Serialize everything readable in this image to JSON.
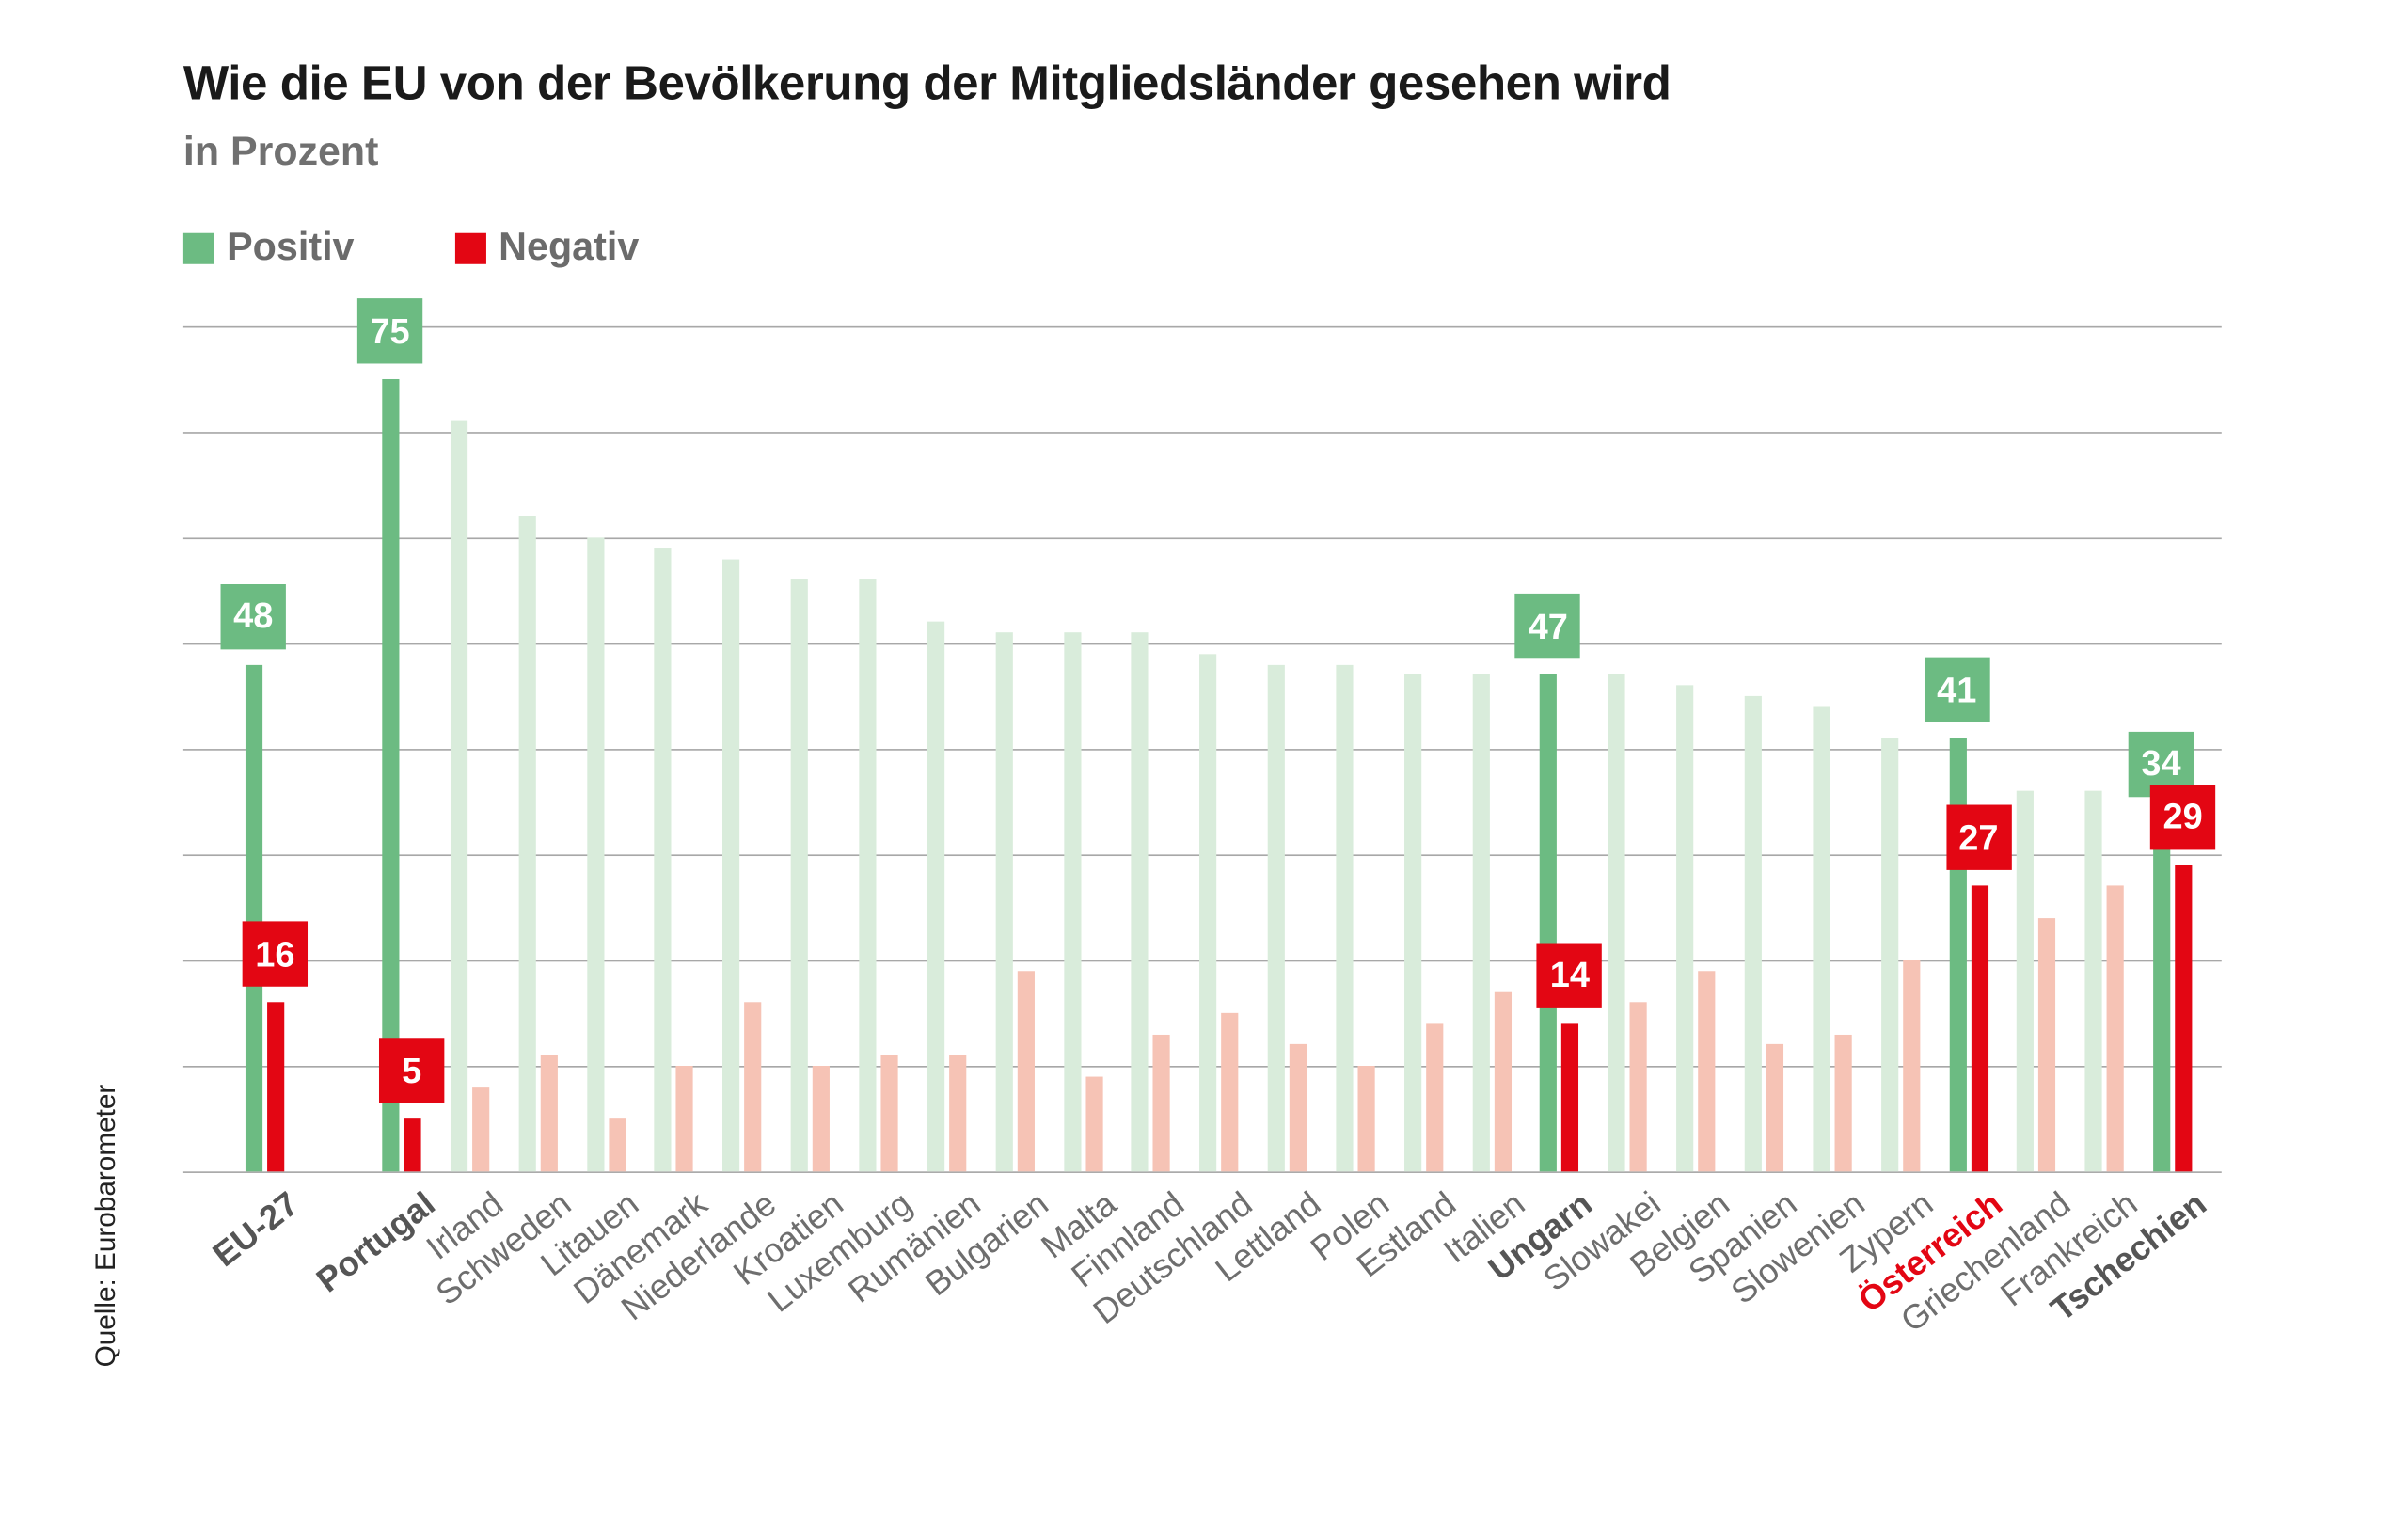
{
  "chart_data": {
    "type": "bar",
    "title": "Wie die EU von der Bevölkerung der Mitgliedsländer gesehen wird",
    "subtitle": "in Prozent",
    "source": "Quelle: Eurobarometer",
    "ylim": [
      0,
      80
    ],
    "grid": true,
    "legend_position": "top-left",
    "legend": [
      {
        "name": "Positiv",
        "color": "#6cbb82"
      },
      {
        "name": "Negativ",
        "color": "#e30613"
      }
    ],
    "faded_colors": {
      "positive": "#d9ecdb",
      "negative": "#f6c3b5"
    },
    "categories": [
      "EU-27",
      "Portugal",
      "Irland",
      "Schweden",
      "Litauen",
      "Dänemark",
      "Niederlande",
      "Kroatien",
      "Luxemburg",
      "Rumänien",
      "Bulgarien",
      "Malta",
      "Finnland",
      "Deutschland",
      "Lettland",
      "Polen",
      "Estland",
      "Italien",
      "Ungarn",
      "Slowakei",
      "Belgien",
      "Spanien",
      "Slowenien",
      "Zypern",
      "Österreich",
      "Griechenland",
      "Frankreich",
      "Tschechien"
    ],
    "series": [
      {
        "name": "Positiv",
        "values": [
          48,
          75,
          71,
          62,
          60,
          59,
          58,
          56,
          56,
          52,
          51,
          51,
          51,
          49,
          48,
          48,
          47,
          47,
          47,
          47,
          46,
          45,
          44,
          41,
          41,
          36,
          36,
          34
        ]
      },
      {
        "name": "Negativ",
        "values": [
          16,
          5,
          8,
          11,
          5,
          10,
          16,
          10,
          11,
          11,
          19,
          9,
          13,
          15,
          12,
          10,
          14,
          17,
          14,
          16,
          19,
          12,
          13,
          20,
          27,
          24,
          27,
          29
        ]
      }
    ],
    "highlighted": [
      "EU-27",
      "Portugal",
      "Ungarn",
      "Österreich",
      "Tschechien"
    ],
    "red_category_label": "Österreich"
  }
}
